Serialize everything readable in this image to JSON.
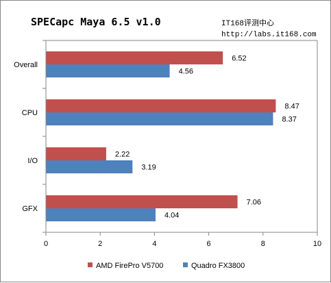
{
  "chart_data": {
    "type": "bar",
    "orientation": "horizontal",
    "title": "SPECapc Maya 6.5 v1.0",
    "watermark": [
      "IT168评测中心",
      "http://labs.it168.com"
    ],
    "categories": [
      "Overall",
      "CPU",
      "I/O",
      "GFX"
    ],
    "series": [
      {
        "name": "AMD FirePro V5700",
        "color": "#C0504D",
        "values": [
          6.52,
          8.47,
          2.22,
          7.06
        ]
      },
      {
        "name": "Quadro FX3800",
        "color": "#4F81BD",
        "values": [
          4.56,
          8.37,
          3.19,
          4.04
        ]
      }
    ],
    "xlim": [
      0,
      10
    ],
    "xticks": [
      0,
      2,
      4,
      6,
      8,
      10
    ],
    "grid": false,
    "legend_position": "bottom"
  }
}
